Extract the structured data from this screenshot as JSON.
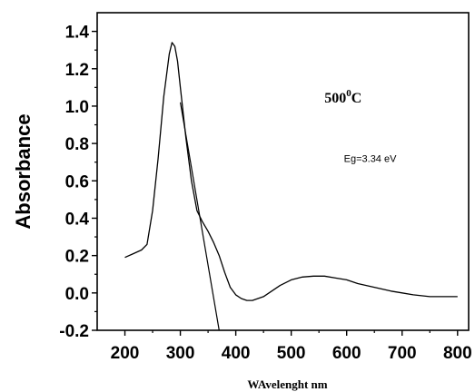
{
  "chart_data": {
    "type": "line",
    "xlabel": "WAvelenght nm",
    "ylabel": "Absorbance",
    "xlim": [
      150,
      820
    ],
    "ylim": [
      -0.2,
      1.5
    ],
    "x_ticks": [
      200,
      300,
      400,
      500,
      600,
      700,
      800
    ],
    "y_ticks": [
      -0.2,
      0.0,
      0.2,
      0.4,
      0.6,
      0.8,
      1.0,
      1.2,
      1.4
    ],
    "x_tick_labels": [
      "200",
      "300",
      "400",
      "500",
      "600",
      "700",
      "800"
    ],
    "y_tick_labels": [
      "-0.2",
      "0.0",
      "0.2",
      "0.4",
      "0.6",
      "0.8",
      "1.0",
      "1.2",
      "1.4"
    ],
    "annotation_temp": {
      "base": "500",
      "sup": "0",
      "unit": "C",
      "x": 560,
      "y": 1.02
    },
    "annotation_eg": {
      "text": "Eg=3.34 eV",
      "x": 595,
      "y": 0.7
    },
    "series": [
      {
        "x": [
          200,
          215,
          230,
          240,
          250,
          260,
          270,
          280,
          285,
          290,
          295,
          300,
          310,
          320,
          330,
          340,
          350,
          360,
          370,
          380,
          390,
          400,
          410,
          420,
          430,
          440,
          450,
          460,
          480,
          500,
          520,
          540,
          560,
          580,
          600,
          620,
          650,
          680,
          700,
          720,
          750,
          780,
          800
        ],
        "y": [
          0.19,
          0.21,
          0.23,
          0.26,
          0.44,
          0.72,
          1.05,
          1.28,
          1.34,
          1.32,
          1.24,
          1.1,
          0.83,
          0.6,
          0.44,
          0.38,
          0.33,
          0.27,
          0.2,
          0.11,
          0.03,
          -0.01,
          -0.03,
          -0.04,
          -0.04,
          -0.03,
          -0.02,
          0.0,
          0.04,
          0.07,
          0.085,
          0.09,
          0.09,
          0.08,
          0.07,
          0.05,
          0.03,
          0.01,
          0.0,
          -0.01,
          -0.02,
          -0.02,
          -0.02
        ]
      }
    ],
    "tangent_line": {
      "x": [
        300,
        370
      ],
      "y": [
        1.02,
        -0.2
      ]
    }
  }
}
